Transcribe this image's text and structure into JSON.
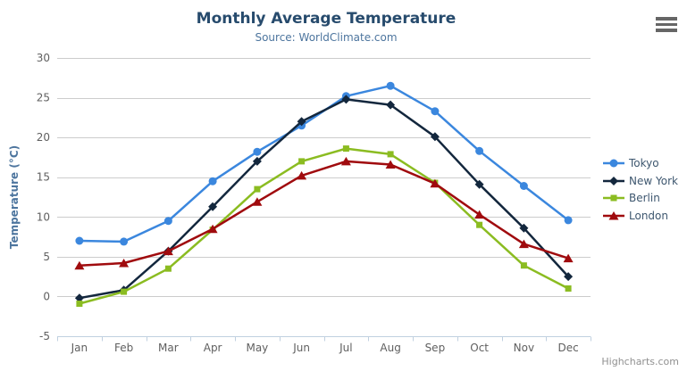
{
  "chart_data": {
    "type": "line",
    "title": "Monthly Average Temperature",
    "subtitle": "Source: WorldClimate.com",
    "xlabel": "",
    "ylabel": "Temperature (°C)",
    "categories": [
      "Jan",
      "Feb",
      "Mar",
      "Apr",
      "May",
      "Jun",
      "Jul",
      "Aug",
      "Sep",
      "Oct",
      "Nov",
      "Dec"
    ],
    "ylim": [
      -5,
      30
    ],
    "yticks": [
      -5,
      0,
      5,
      10,
      15,
      20,
      25,
      30
    ],
    "grid": true,
    "legend_position": "right",
    "series": [
      {
        "name": "Tokyo",
        "color": "#3b87de",
        "marker": "circle",
        "values": [
          7.0,
          6.9,
          9.5,
          14.5,
          18.2,
          21.5,
          25.2,
          26.5,
          23.3,
          18.3,
          13.9,
          9.6
        ]
      },
      {
        "name": "New York",
        "color": "#13273d",
        "marker": "diamond",
        "values": [
          -0.2,
          0.8,
          5.7,
          11.3,
          17.0,
          22.0,
          24.8,
          24.1,
          20.1,
          14.1,
          8.6,
          2.5
        ]
      },
      {
        "name": "Berlin",
        "color": "#8bbc21",
        "marker": "square",
        "values": [
          -0.9,
          0.6,
          3.5,
          8.4,
          13.5,
          17.0,
          18.6,
          17.9,
          14.3,
          9.0,
          3.9,
          1.0
        ]
      },
      {
        "name": "London",
        "color": "#a00b0e",
        "marker": "triangle",
        "values": [
          3.9,
          4.2,
          5.7,
          8.5,
          11.9,
          15.2,
          17.0,
          16.6,
          14.2,
          10.3,
          6.6,
          4.8
        ]
      }
    ],
    "credits": "Highcharts.com"
  },
  "palette": {
    "title": "#274b6d",
    "subtitle": "#4d759e",
    "axis_title": "#4d759e",
    "axis_labels": "#606060",
    "grid_line": "#cccccc",
    "axis_line": "#c0d0e0",
    "legend_text": "#3e576f",
    "credits_text": "#909090",
    "menu_icon": "#666666"
  },
  "icons": {
    "context_menu": "hamburger-menu-icon"
  }
}
